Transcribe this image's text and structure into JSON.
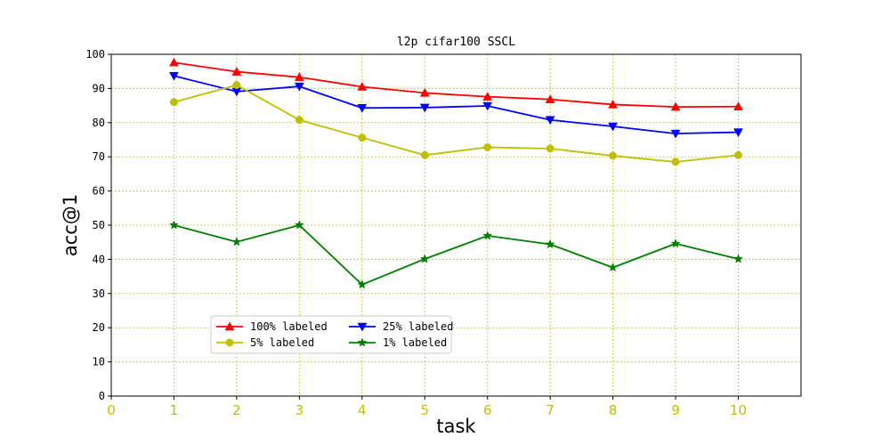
{
  "chart_data": {
    "type": "line",
    "title": "l2p cifar100 SSCL",
    "xlabel": "task",
    "ylabel": "acc@1",
    "xlim": [
      0,
      11
    ],
    "ylim": [
      0,
      100
    ],
    "xticks": [
      0,
      1,
      2,
      3,
      4,
      5,
      6,
      7,
      8,
      9,
      10
    ],
    "yticks": [
      0,
      10,
      20,
      30,
      40,
      50,
      60,
      70,
      80,
      90,
      100
    ],
    "x_tick_color": "#bfbf00",
    "grid": true,
    "grid_color": "#bfbf00",
    "grid_style": "dotted",
    "legend": {
      "placement": "lower-left",
      "columns": 2
    },
    "x": [
      1,
      2,
      3,
      4,
      5,
      6,
      7,
      8,
      9,
      10
    ],
    "series": [
      {
        "name": "100% labeled",
        "color": "#ff0000",
        "marker": "triangle-up",
        "values": [
          97.6,
          94.9,
          93.3,
          90.5,
          88.7,
          87.6,
          86.8,
          85.3,
          84.6,
          84.7
        ]
      },
      {
        "name": "25% labeled",
        "color": "#0000ff",
        "marker": "triangle-down",
        "values": [
          93.7,
          89.1,
          90.6,
          84.3,
          84.4,
          84.9,
          80.8,
          78.9,
          76.8,
          77.2
        ]
      },
      {
        "name": "5% labeled",
        "color": "#bfbf00",
        "marker": "circle",
        "values": [
          86.0,
          91.0,
          80.8,
          75.6,
          70.5,
          72.8,
          72.4,
          70.3,
          68.5,
          70.5
        ]
      },
      {
        "name": "1% labeled",
        "color": "#008000",
        "marker": "star",
        "values": [
          50.0,
          45.1,
          50.0,
          32.6,
          40.1,
          46.9,
          44.4,
          37.6,
          44.6,
          40.1
        ]
      }
    ]
  }
}
